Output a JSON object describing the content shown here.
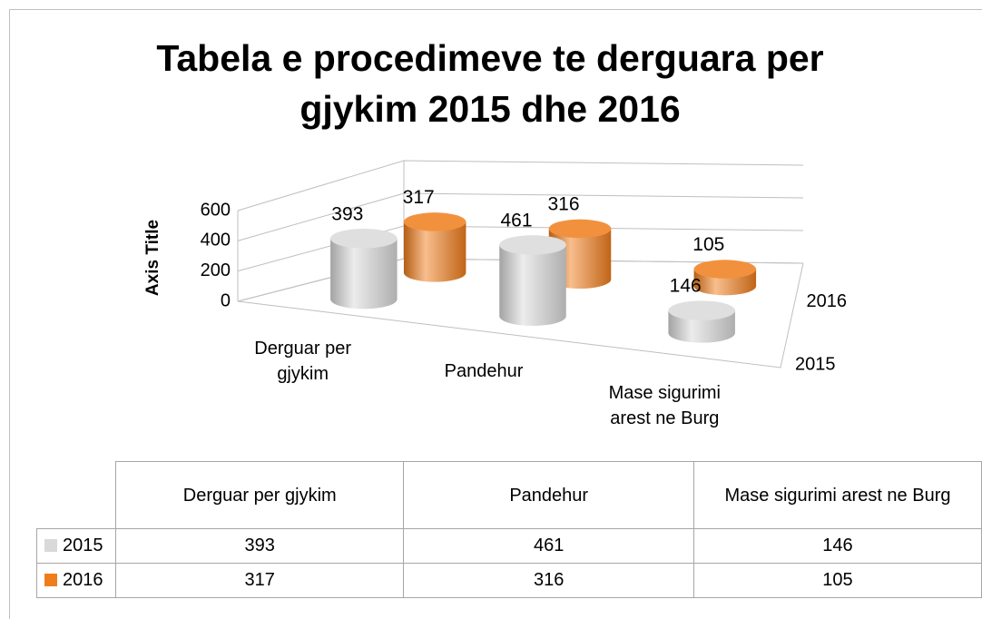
{
  "chart_data": {
    "type": "bar",
    "title": "Tabela e procedimeve te derguara per gjykim 2015 dhe 2016",
    "y_axis_label": "Axis Title",
    "categories": [
      "Derguar per gjykim",
      "Pandehur",
      "Mase sigurimi arest ne Burg"
    ],
    "series": [
      {
        "name": "2015",
        "color": "#d9d9d9",
        "values": [
          393,
          461,
          146
        ]
      },
      {
        "name": "2016",
        "color": "#f07d1b",
        "values": [
          317,
          316,
          105
        ]
      }
    ],
    "ylim": [
      0,
      600
    ],
    "yticks": [
      0,
      200,
      400,
      600
    ],
    "grid": true
  }
}
